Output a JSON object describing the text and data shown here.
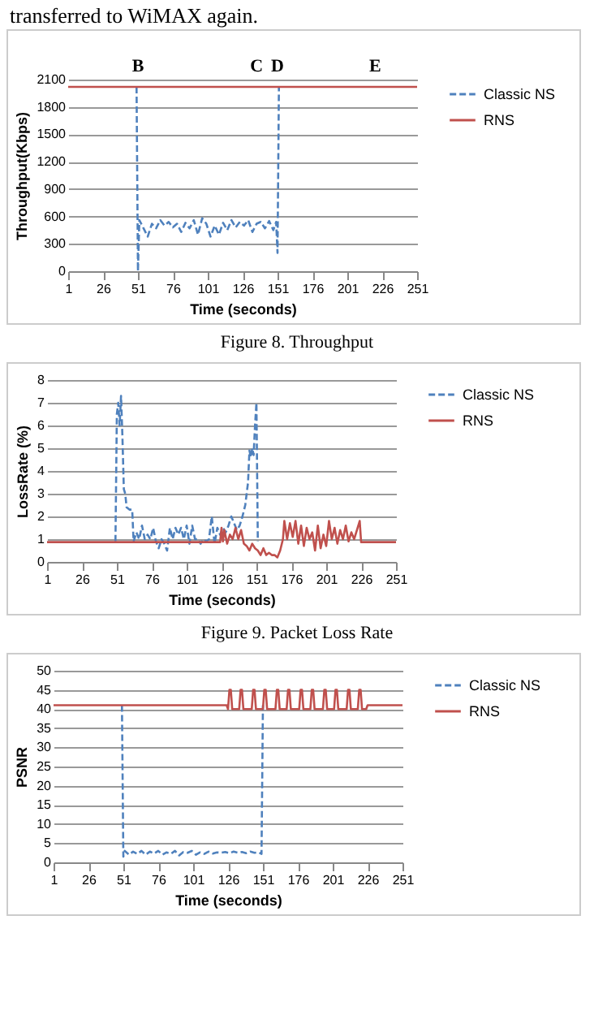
{
  "chart_data": [
    {
      "type": "line",
      "subtitle": "transferred to WiMAX again.",
      "xlabel": "Time (seconds)",
      "ylabel": "Throughput(Kbps)",
      "xlim": [
        1,
        251
      ],
      "xticks": [
        1,
        26,
        51,
        76,
        101,
        126,
        151,
        176,
        201,
        226,
        251
      ],
      "ylim": [
        0,
        2100
      ],
      "yticks": [
        0,
        300,
        600,
        900,
        1200,
        1500,
        1800,
        2100
      ],
      "grid": "y",
      "legend": "right",
      "annotations": [
        "Figure 8. Throughput",
        {
          "text": "B",
          "x": 51,
          "y": 2100
        },
        {
          "text": "C",
          "x": 136,
          "y": 2100
        },
        {
          "text": "D",
          "x": 151,
          "y": 2100
        },
        {
          "text": "E",
          "x": 221,
          "y": 2100
        }
      ],
      "series": [
        {
          "name": "Classic NS",
          "color": "#4f81bd",
          "line_style": "dashed",
          "x": [
            50,
            51,
            52,
            55,
            58,
            61,
            64,
            67,
            70,
            73,
            76,
            79,
            82,
            85,
            88,
            91,
            94,
            97,
            100,
            103,
            106,
            109,
            112,
            115,
            118,
            121,
            124,
            127,
            130,
            133,
            136,
            139,
            142,
            145,
            148,
            150,
            151,
            152
          ],
          "values": [
            2020,
            0,
            560,
            470,
            380,
            520,
            470,
            560,
            500,
            540,
            480,
            520,
            430,
            530,
            470,
            560,
            400,
            580,
            520,
            380,
            500,
            400,
            530,
            450,
            560,
            480,
            540,
            500,
            560,
            430,
            520,
            540,
            470,
            550,
            450,
            540,
            200,
            2020
          ]
        },
        {
          "name": "RNS",
          "color": "#c0504d",
          "line_style": "solid",
          "x": [
            1,
            251
          ],
          "values": [
            2020,
            2020
          ]
        }
      ]
    },
    {
      "type": "line",
      "xlabel": "Time (seconds)",
      "ylabel": "LossRate (%)",
      "xlim": [
        1,
        251
      ],
      "xticks": [
        1,
        26,
        51,
        76,
        101,
        126,
        151,
        176,
        201,
        226,
        251
      ],
      "ylim": [
        0,
        8
      ],
      "yticks": [
        0,
        1,
        2,
        3,
        4,
        5,
        6,
        7,
        8
      ],
      "grid": "y",
      "legend": "right",
      "annotations": [
        "Figure 9. Packet Loss Rate"
      ],
      "series": [
        {
          "name": "Classic NS",
          "color": "#4f81bd",
          "line_style": "dashed",
          "x": [
            50,
            51,
            52,
            53,
            54,
            55,
            56,
            57,
            58,
            60,
            62,
            63,
            65,
            67,
            69,
            71,
            73,
            75,
            77,
            79,
            81,
            83,
            85,
            87,
            89,
            91,
            93,
            95,
            97,
            99,
            101,
            103,
            105,
            107,
            109,
            111,
            113,
            115,
            117,
            119,
            121,
            123,
            125,
            127,
            129,
            131,
            133,
            135,
            137,
            139,
            141,
            143,
            145,
            146,
            147,
            148,
            149,
            150,
            151,
            152
          ],
          "values": [
            0.9,
            6.5,
            7.0,
            6.0,
            7.3,
            5.5,
            3.2,
            3.0,
            2.4,
            2.3,
            2.3,
            0.9,
            1.3,
            1.0,
            1.6,
            1.0,
            1.2,
            1.0,
            1.5,
            0.9,
            0.6,
            1.0,
            0.8,
            0.5,
            1.5,
            1.0,
            1.5,
            1.2,
            1.5,
            1.0,
            1.6,
            0.8,
            1.6,
            1.0,
            1.0,
            0.8,
            1.0,
            0.9,
            1.0,
            2.0,
            0.8,
            1.5,
            1.2,
            1.5,
            1.3,
            1.6,
            2.0,
            1.7,
            1.4,
            1.6,
            2.0,
            2.5,
            3.5,
            4.9,
            4.6,
            5.0,
            4.7,
            6.0,
            7.0,
            0.9
          ]
        },
        {
          "name": "RNS",
          "color": "#c0504d",
          "line_style": "solid",
          "x": [
            1,
            125,
            126,
            127,
            128,
            130,
            132,
            134,
            136,
            138,
            140,
            142,
            144,
            146,
            148,
            150,
            152,
            154,
            156,
            158,
            160,
            162,
            164,
            166,
            168,
            170,
            171,
            173,
            175,
            177,
            179,
            181,
            183,
            185,
            187,
            189,
            191,
            193,
            195,
            197,
            199,
            201,
            203,
            205,
            207,
            209,
            211,
            213,
            215,
            217,
            219,
            221,
            223,
            225,
            226,
            251
          ],
          "values": [
            0.87,
            0.87,
            1.5,
            0.9,
            1.4,
            0.8,
            1.2,
            1.0,
            1.5,
            1.0,
            1.4,
            0.8,
            0.7,
            0.5,
            0.8,
            0.6,
            0.5,
            0.3,
            0.6,
            0.3,
            0.4,
            0.3,
            0.3,
            0.2,
            0.5,
            1.0,
            1.8,
            1.0,
            1.7,
            1.1,
            1.8,
            0.8,
            1.6,
            0.7,
            1.5,
            1.0,
            1.3,
            0.5,
            1.6,
            0.6,
            1.2,
            0.7,
            1.8,
            1.0,
            1.5,
            0.8,
            1.4,
            1.0,
            1.6,
            0.9,
            1.3,
            1.0,
            1.4,
            1.8,
            0.87,
            0.87
          ]
        }
      ]
    },
    {
      "type": "line",
      "xlabel": "Time (seconds)",
      "ylabel": "PSNR",
      "xlim": [
        1,
        251
      ],
      "xticks": [
        1,
        26,
        51,
        76,
        101,
        126,
        151,
        176,
        201,
        226,
        251
      ],
      "ylim": [
        0,
        50
      ],
      "yticks": [
        0,
        5,
        10,
        15,
        20,
        25,
        30,
        35,
        40,
        45,
        50
      ],
      "grid": "y",
      "legend": "right",
      "series": [
        {
          "name": "Classic NS",
          "color": "#4f81bd",
          "line_style": "dashed",
          "x": [
            50,
            51,
            52,
            55,
            58,
            61,
            64,
            67,
            70,
            73,
            76,
            79,
            82,
            85,
            88,
            91,
            94,
            97,
            100,
            103,
            106,
            109,
            112,
            115,
            118,
            121,
            124,
            127,
            130,
            133,
            136,
            139,
            142,
            145,
            148,
            150,
            151
          ],
          "values": [
            41,
            1.5,
            3,
            2,
            2.8,
            2.2,
            3,
            2,
            2.8,
            2.3,
            3,
            2,
            2.6,
            2.2,
            3,
            1.8,
            2.7,
            2.5,
            3,
            2,
            2.6,
            2.2,
            2.8,
            2.3,
            2.6,
            2.5,
            2.7,
            2.4,
            2.8,
            2.5,
            2.7,
            2.4,
            2.8,
            2.5,
            2.6,
            2.2,
            41
          ]
        },
        {
          "name": "RNS",
          "color": "#c0504d",
          "line_style": "solid",
          "x": [
            1,
            125,
            126,
            127,
            128,
            129,
            134,
            135,
            136,
            137,
            143,
            144,
            145,
            146,
            151,
            152,
            153,
            154,
            160,
            161,
            162,
            163,
            168,
            169,
            170,
            171,
            177,
            178,
            179,
            180,
            185,
            186,
            187,
            188,
            194,
            195,
            196,
            197,
            202,
            203,
            204,
            205,
            211,
            212,
            213,
            214,
            219,
            220,
            221,
            222,
            225,
            226,
            251
          ],
          "values": [
            41,
            41,
            40,
            45,
            45,
            40,
            40,
            45,
            45,
            40,
            40,
            45,
            45,
            40,
            40,
            45,
            45,
            40,
            40,
            45,
            45,
            40,
            40,
            45,
            45,
            40,
            40,
            45,
            45,
            40,
            40,
            45,
            45,
            40,
            40,
            45,
            45,
            40,
            40,
            45,
            45,
            40,
            40,
            45,
            45,
            40,
            40,
            45,
            45,
            40,
            40,
            41,
            41
          ]
        }
      ]
    }
  ]
}
